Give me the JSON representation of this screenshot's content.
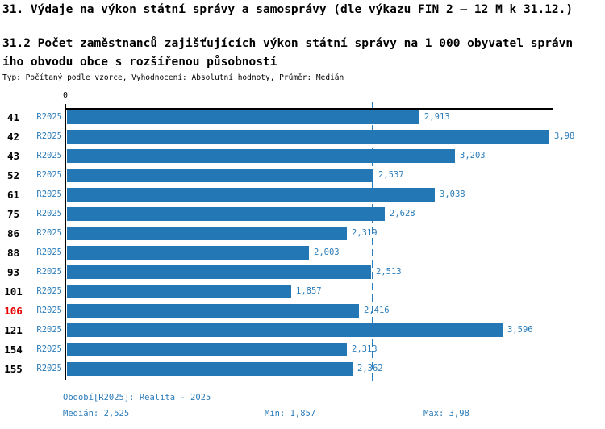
{
  "header": {
    "title": "31. Výdaje na výkon státní správy a samosprávy (dle výkazu FIN 2 – 12 M k 31.12.)",
    "subtitle_line1": "31.2 Počet zaměstnanců zajišťujících výkon státní správy na 1 000 obyvatel správn",
    "subtitle_line2": "ího obvodu obce s rozšířenou působností",
    "meta": "Typ: Počítaný podle vzorce, Vyhodnocení: Absolutní hodnoty, Průměr: Medián"
  },
  "chart_data": {
    "type": "bar",
    "orientation": "horizontal",
    "axis": {
      "origin_label": "0",
      "xmin": 0,
      "xmax": 4.02,
      "grid": "median-line-only"
    },
    "series_label": "R2025",
    "median_value": 2.525,
    "min_value": 1.857,
    "max_value": 3.98,
    "rows": [
      {
        "id": "41",
        "period": "R2025",
        "value": 2.913,
        "value_label": "2,913",
        "highlight": false
      },
      {
        "id": "42",
        "period": "R2025",
        "value": 3.98,
        "value_label": "3,98",
        "highlight": false
      },
      {
        "id": "43",
        "period": "R2025",
        "value": 3.203,
        "value_label": "3,203",
        "highlight": false
      },
      {
        "id": "52",
        "period": "R2025",
        "value": 2.537,
        "value_label": "2,537",
        "highlight": false
      },
      {
        "id": "61",
        "period": "R2025",
        "value": 3.038,
        "value_label": "3,038",
        "highlight": false
      },
      {
        "id": "75",
        "period": "R2025",
        "value": 2.628,
        "value_label": "2,628",
        "highlight": false
      },
      {
        "id": "86",
        "period": "R2025",
        "value": 2.319,
        "value_label": "2,319",
        "highlight": false
      },
      {
        "id": "88",
        "period": "R2025",
        "value": 2.003,
        "value_label": "2,003",
        "highlight": false
      },
      {
        "id": "93",
        "period": "R2025",
        "value": 2.513,
        "value_label": "2,513",
        "highlight": false
      },
      {
        "id": "101",
        "period": "R2025",
        "value": 1.857,
        "value_label": "1,857",
        "highlight": false
      },
      {
        "id": "106",
        "period": "R2025",
        "value": 2.416,
        "value_label": "2,416",
        "highlight": true
      },
      {
        "id": "121",
        "period": "R2025",
        "value": 3.596,
        "value_label": "3,596",
        "highlight": false
      },
      {
        "id": "154",
        "period": "R2025",
        "value": 2.313,
        "value_label": "2,313",
        "highlight": false
      },
      {
        "id": "155",
        "period": "R2025",
        "value": 2.362,
        "value_label": "2,362",
        "highlight": false
      }
    ],
    "colors": {
      "bar": "#2277b4",
      "text_blue": "#2b7cb9",
      "highlight": "#e60000",
      "axis": "#000000"
    }
  },
  "footer": {
    "period_line": "Období[R2025]: Realita - 2025",
    "median": "Medián: 2,525",
    "min": "Min: 1,857",
    "max": "Max: 3,98"
  }
}
